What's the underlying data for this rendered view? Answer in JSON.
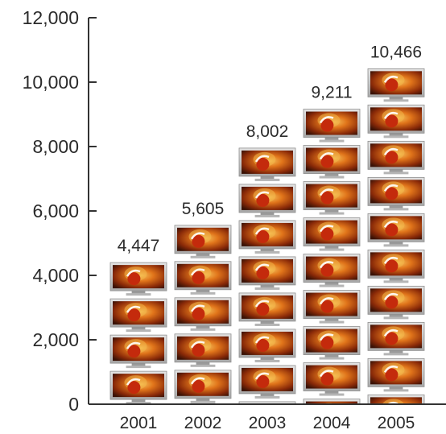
{
  "chart_data": {
    "type": "bar",
    "categories": [
      "2001",
      "2002",
      "2003",
      "2004",
      "2005"
    ],
    "values": [
      4447,
      5605,
      8002,
      9211,
      10466
    ],
    "value_labels": [
      "4,447",
      "5,605",
      "8,002",
      "9,211",
      "10,466"
    ],
    "yticks": [
      "0",
      "2,000",
      "4,000",
      "6,000",
      "8,000",
      "10,000",
      "12,000"
    ],
    "ylim": [
      0,
      12000
    ],
    "title": "",
    "xlabel": "",
    "ylabel": "",
    "grid": false,
    "legend": "none",
    "bar_style": "stacked-tv-pictograph",
    "colors": {
      "axis": "#333333",
      "text": "#2b2b2b",
      "tv_bezel": "#c9c9c9",
      "tv_screen_dark": "#3a1206",
      "tv_screen_orange": "#e0741a",
      "tv_glow": "#f2b84a",
      "tv_ball": "#c42a0c",
      "tv_stand": "#9a9a9a"
    }
  }
}
